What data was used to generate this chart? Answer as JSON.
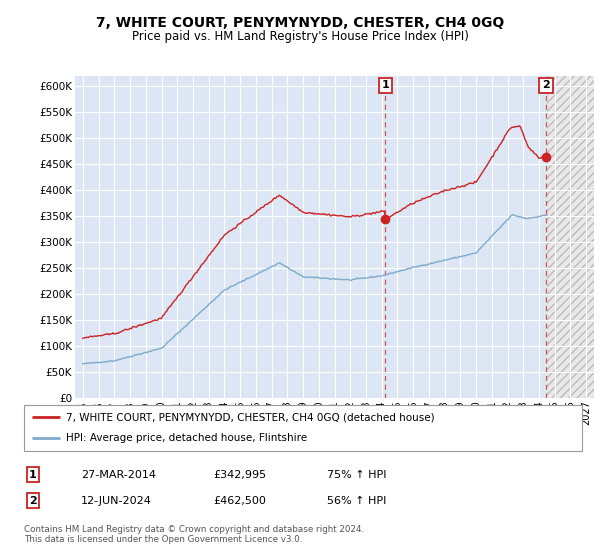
{
  "title": "7, WHITE COURT, PENYMYNYDD, CHESTER, CH4 0GQ",
  "subtitle": "Price paid vs. HM Land Registry's House Price Index (HPI)",
  "ylim": [
    0,
    620000
  ],
  "yticks": [
    0,
    50000,
    100000,
    150000,
    200000,
    250000,
    300000,
    350000,
    400000,
    450000,
    500000,
    550000,
    600000
  ],
  "ytick_labels": [
    "£0",
    "£50K",
    "£100K",
    "£150K",
    "£200K",
    "£250K",
    "£300K",
    "£350K",
    "£400K",
    "£450K",
    "£500K",
    "£550K",
    "£600K"
  ],
  "xlim_start": 1994.5,
  "xlim_end": 2027.5,
  "hpi_color": "#7eaacc",
  "price_color": "#cc2222",
  "marker1_x": 2014.23,
  "marker1_y": 342995,
  "marker2_x": 2024.45,
  "marker2_y": 462500,
  "data_end_x": 2024.5,
  "legend_line1": "7, WHITE COURT, PENYMYNYDD, CHESTER, CH4 0GQ (detached house)",
  "legend_line2": "HPI: Average price, detached house, Flintshire",
  "table_row1": [
    "1",
    "27-MAR-2014",
    "£342,995",
    "75% ↑ HPI"
  ],
  "table_row2": [
    "2",
    "12-JUN-2024",
    "£462,500",
    "56% ↑ HPI"
  ],
  "footnote": "Contains HM Land Registry data © Crown copyright and database right 2024.\nThis data is licensed under the Open Government Licence v3.0.",
  "bg_color": "#ffffff",
  "plot_bg_color": "#dce6f5",
  "grid_color": "#ffffff"
}
